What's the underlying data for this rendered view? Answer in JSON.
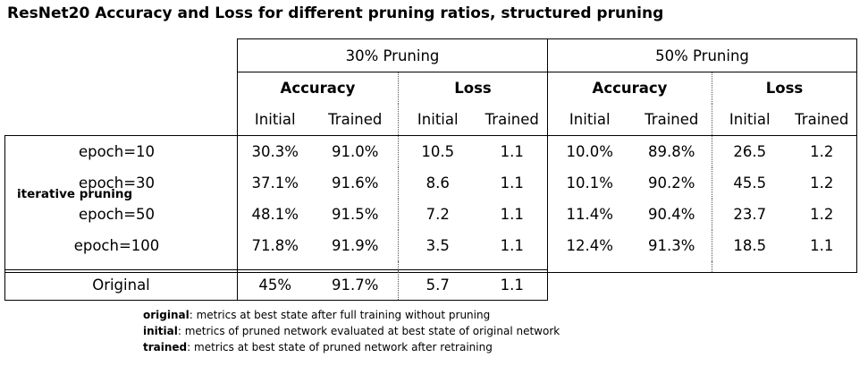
{
  "title": "ResNet20 Accuracy and Loss for different pruning ratios, structured pruning",
  "groups": [
    {
      "label": "30% Pruning",
      "accuracy_label": "Accuracy",
      "loss_label": "Loss"
    },
    {
      "label": "50% Pruning",
      "accuracy_label": "Accuracy",
      "loss_label": "Loss"
    }
  ],
  "subheaders": {
    "initial": "Initial",
    "trained": "Trained"
  },
  "row_group_label": "iterative pruning",
  "rows": [
    {
      "label": "epoch=10",
      "v": [
        "30.3%",
        "91.0%",
        "10.5",
        "1.1",
        "10.0%",
        "89.8%",
        "26.5",
        "1.2"
      ]
    },
    {
      "label": "epoch=30",
      "v": [
        "37.1%",
        "91.6%",
        "8.6",
        "1.1",
        "10.1%",
        "90.2%",
        "45.5",
        "1.2"
      ]
    },
    {
      "label": "epoch=50",
      "v": [
        "48.1%",
        "91.5%",
        "7.2",
        "1.1",
        "11.4%",
        "90.4%",
        "23.7",
        "1.2"
      ]
    },
    {
      "label": "epoch=100",
      "v": [
        "71.8%",
        "91.9%",
        "3.5",
        "1.1",
        "12.4%",
        "91.3%",
        "18.5",
        "1.1"
      ]
    }
  ],
  "original": {
    "label": "Original",
    "v": [
      "45%",
      "91.7%",
      "5.7",
      "1.1"
    ]
  },
  "notes": [
    {
      "term": "original",
      "text": ": metrics at best state after full training without pruning"
    },
    {
      "term": "initial",
      "text": ": metrics of pruned network evaluated at best state of original network"
    },
    {
      "term": "trained",
      "text": ": metrics at best state of pruned network after retraining"
    }
  ]
}
